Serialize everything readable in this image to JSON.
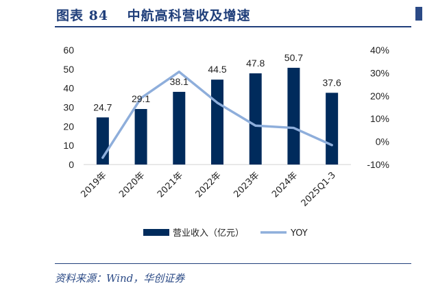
{
  "header": {
    "title": "图表 84　 中航高科营收及增速"
  },
  "footer": {
    "source": "资料来源：Wind，华创证券"
  },
  "colors": {
    "bar": "#002b5c",
    "line": "#8eaedb",
    "title": "#1f3e7a"
  },
  "chart_data": {
    "type": "bar",
    "title": "中航高科营收及增速",
    "categories": [
      "2019年",
      "2020年",
      "2021年",
      "2022年",
      "2023年",
      "2024年",
      "2025Q1-3"
    ],
    "series": [
      {
        "name": "营业收入（亿元）",
        "type": "bar",
        "axis": "left",
        "values": [
          24.7,
          29.1,
          38.1,
          44.5,
          47.8,
          50.7,
          37.6
        ]
      },
      {
        "name": "YOY",
        "type": "line",
        "axis": "right",
        "values": [
          -7,
          19,
          30.5,
          17,
          7,
          6,
          -1.5
        ]
      }
    ],
    "ylim_left": [
      0,
      60
    ],
    "yticks_left": [
      "0",
      "10",
      "20",
      "30",
      "40",
      "50",
      "60"
    ],
    "ylim_right": [
      -10,
      40
    ],
    "yticks_right": [
      "-10%",
      "0%",
      "10%",
      "20%",
      "30%",
      "40%"
    ],
    "data_labels": [
      "24.7",
      "29.1",
      "38.1",
      "44.5",
      "47.8",
      "50.7",
      "37.6"
    ],
    "legend": {
      "position": "bottom",
      "entries": [
        "营业收入（亿元）",
        "YOY"
      ]
    }
  }
}
